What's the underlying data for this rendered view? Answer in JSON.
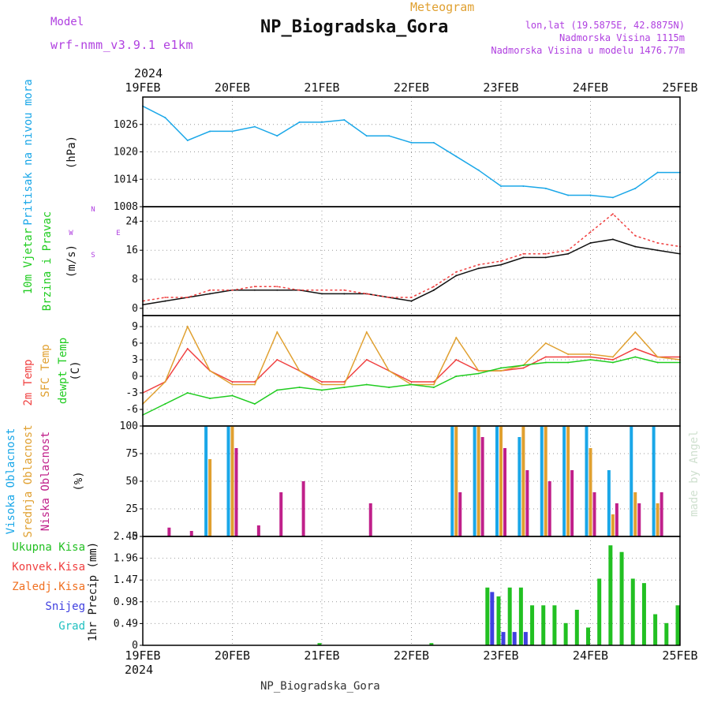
{
  "header": {
    "model_label": "Model",
    "model_name": "wrf-nmm_v3.9.1 e1km",
    "product": "Meteogram",
    "station": "NP_Biogradska_Gora",
    "coords": "lon,lat (19.5875E, 42.8875N)",
    "elevation": "Nadmorska Visina 1115m",
    "model_elevation": "Nadmorska Visina u modelu 1476.77m",
    "credit": "made by Angel"
  },
  "footer": {
    "station": "NP_Biogradska_Gora"
  },
  "time_axis": {
    "year_top": "2024",
    "year_bottom": "2024",
    "tick_labels": [
      "19FEB",
      "20FEB",
      "21FEB",
      "22FEB",
      "23FEB",
      "24FEB",
      "25FEB"
    ]
  },
  "colors": {
    "pressure": "#1aa7e8",
    "t2m": "#f04040",
    "sfc": "#e0a030",
    "dewpt": "#20cc20",
    "wind_axis": "#b040e0",
    "cloud_high": "#1aa7e8",
    "cloud_mid": "#e0a030",
    "cloud_low": "#c0208a",
    "rain_total": "#22c022",
    "rain_conv": "#f04040",
    "rain_frz": "#f07020",
    "snow": "#4040e0",
    "hail": "#20c0c0"
  },
  "chart_data": [
    {
      "type": "line",
      "panel": "pressure",
      "ylabel_lines": [
        "Pritisak na nivou mora",
        "(hPa)"
      ],
      "ylim": [
        1008,
        1032
      ],
      "yticks": [
        "1008",
        "1014",
        "1020",
        "1026"
      ],
      "x_days": [
        0,
        0.25,
        0.5,
        0.75,
        1,
        1.25,
        1.5,
        1.75,
        2,
        2.25,
        2.5,
        2.75,
        3,
        3.25,
        3.5,
        3.75,
        4,
        4.25,
        4.5,
        4.75,
        5,
        5.25,
        5.5,
        5.75,
        6
      ],
      "series": [
        {
          "values": [
            1030,
            1027.5,
            1022.5,
            1024.5,
            1024.5,
            1025.5,
            1023.5,
            1026.5,
            1026.5,
            1027,
            1023.5,
            1023.5,
            1022,
            1022,
            1019,
            1016,
            1012.5,
            1012.5,
            1012,
            1010.5,
            1010.5,
            1010,
            1012,
            1015.5,
            1015.5
          ]
        }
      ]
    },
    {
      "type": "line",
      "panel": "wind",
      "ylabel_lines": [
        "10m Vjetar",
        "Brzina i Pravac",
        "(m/s)"
      ],
      "ylim": [
        -2,
        28
      ],
      "yticks": [
        "0",
        "8",
        "16",
        "24"
      ],
      "compass": {
        "w": "W",
        "e": "E",
        "n": "N",
        "s": "S"
      },
      "x_days": [
        0,
        0.25,
        0.5,
        0.75,
        1,
        1.25,
        1.5,
        1.75,
        2,
        2.25,
        2.5,
        2.75,
        3,
        3.25,
        3.5,
        3.75,
        4,
        4.25,
        4.5,
        4.75,
        5,
        5.25,
        5.5,
        5.75,
        6
      ],
      "series": [
        {
          "values": [
            1,
            2,
            3,
            4,
            5,
            5,
            5,
            5,
            4,
            4,
            4,
            3,
            2,
            5,
            9,
            11,
            12,
            14,
            14,
            15,
            18,
            19,
            17,
            16,
            15
          ]
        },
        {
          "values": [
            2,
            3,
            3,
            5,
            5,
            6,
            6,
            5,
            5,
            5,
            4,
            3,
            3,
            6,
            10,
            12,
            13,
            15,
            15,
            16,
            21,
            26,
            20,
            18,
            17
          ]
        }
      ]
    },
    {
      "type": "line",
      "panel": "temperature",
      "ylabel_lines": [
        "2m Temp",
        "SFC Temp",
        "dewpt Temp",
        "(C)"
      ],
      "ylim": [
        -9,
        11
      ],
      "yticks": [
        "-6",
        "-3",
        "0",
        "3",
        "6",
        "9"
      ],
      "x_days": [
        0,
        0.25,
        0.5,
        0.75,
        1,
        1.25,
        1.5,
        1.75,
        2,
        2.25,
        2.5,
        2.75,
        3,
        3.25,
        3.5,
        3.75,
        4,
        4.25,
        4.5,
        4.75,
        5,
        5.25,
        5.5,
        5.75,
        6
      ],
      "series": [
        {
          "name": "2m Temp",
          "values": [
            -3,
            -1,
            5,
            1,
            -1,
            -1,
            3,
            1,
            -1,
            -1,
            3,
            1,
            -1,
            -1,
            3,
            1,
            1,
            1.5,
            3.5,
            3.5,
            3.5,
            3,
            5,
            3.5,
            3.5
          ]
        },
        {
          "name": "SFC Temp",
          "values": [
            -5,
            -1,
            9,
            1,
            -1.5,
            -1.5,
            8,
            1,
            -1.5,
            -1.5,
            8,
            1,
            -1.5,
            -1.5,
            7,
            1,
            1,
            2,
            6,
            4,
            4,
            3.5,
            8,
            3.5,
            3
          ]
        },
        {
          "name": "dewpt Temp",
          "values": [
            -7,
            -5,
            -3,
            -4,
            -3.5,
            -5,
            -2.5,
            -2,
            -2.5,
            -2,
            -1.5,
            -2,
            -1.5,
            -2,
            0,
            0.5,
            1.5,
            2,
            2.5,
            2.5,
            3,
            2.5,
            3.5,
            2.5,
            2.5
          ]
        }
      ]
    },
    {
      "type": "bar",
      "panel": "cloud",
      "ylabel_lines": [
        "Visoka Oblacnost",
        "Srednja Oblacnost",
        "Niska Oblacnost",
        "(%)"
      ],
      "ylim": [
        0,
        100
      ],
      "yticks": [
        "0",
        "25",
        "50",
        "75",
        "100"
      ],
      "x_days": [
        0.25,
        0.5,
        0.75,
        1,
        1.25,
        1.5,
        1.75,
        2,
        2.25,
        2.5,
        2.75,
        3,
        3.25,
        3.5,
        3.75,
        4,
        4.25,
        4.5,
        4.75,
        5,
        5.25,
        5.5,
        5.75
      ],
      "series": [
        {
          "name": "Visoka Oblacnost",
          "values": [
            0,
            0,
            100,
            100,
            0,
            0,
            0,
            0,
            0,
            0,
            0,
            0,
            0,
            100,
            100,
            100,
            90,
            100,
            100,
            100,
            60,
            100,
            100
          ]
        },
        {
          "name": "Srednja Oblacnost",
          "values": [
            0,
            0,
            70,
            100,
            0,
            0,
            0,
            0,
            0,
            0,
            0,
            0,
            0,
            100,
            100,
            100,
            100,
            100,
            100,
            80,
            20,
            40,
            30
          ]
        },
        {
          "name": "Niska Oblacnost",
          "values": [
            8,
            5,
            0,
            80,
            10,
            40,
            50,
            0,
            0,
            30,
            0,
            0,
            0,
            40,
            90,
            80,
            60,
            50,
            60,
            40,
            30,
            30,
            40
          ]
        }
      ]
    },
    {
      "type": "bar",
      "panel": "precip",
      "ylabel": "1hr Precip (mm)",
      "ylim": [
        0,
        2.45
      ],
      "yticks": [
        "0",
        "0.49",
        "0.98",
        "1.47",
        "1.96",
        "2.45"
      ],
      "legend": [
        "Ukupna Kisa",
        "Konvek.Kisa",
        "Zaledj.Kisa",
        "Snijeg",
        "Grad"
      ],
      "x_days": [
        2,
        3.25,
        3.875,
        4,
        4.125,
        4.25,
        4.375,
        4.5,
        4.625,
        4.75,
        4.875,
        5,
        5.125,
        5.25,
        5.375,
        5.5,
        5.625,
        5.75,
        5.875,
        6
      ],
      "series": [
        {
          "name": "Ukupna Kisa",
          "values": [
            0.05,
            0.05,
            1.3,
            1.1,
            1.3,
            1.3,
            0.9,
            0.9,
            0.9,
            0.5,
            0.8,
            0.4,
            1.5,
            2.25,
            2.1,
            1.5,
            1.4,
            0.7,
            0.5,
            0.9
          ]
        },
        {
          "name": "Snijeg",
          "values": [
            0,
            0,
            1.2,
            0.3,
            0.3,
            0.3,
            0,
            0,
            0,
            0,
            0,
            0,
            0,
            0,
            0,
            0,
            0,
            0,
            0,
            0
          ]
        }
      ]
    }
  ]
}
